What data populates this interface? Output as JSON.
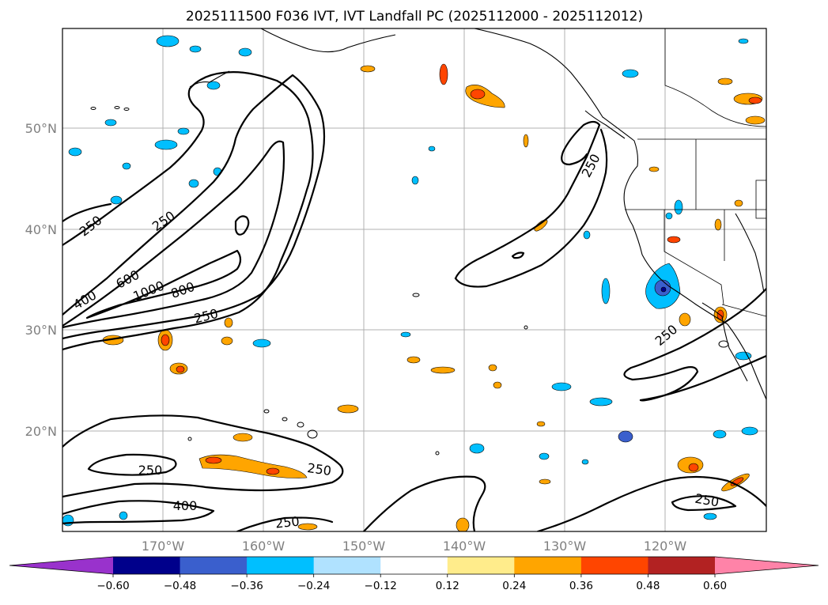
{
  "title": "2025111500 F036 IVT, IVT Landfall PC (2025112000 - 2025112012)",
  "map": {
    "lat_labels": [
      "50°N",
      "40°N",
      "30°N",
      "20°N"
    ],
    "lon_labels": [
      "170°W",
      "160°W",
      "150°W",
      "140°W",
      "130°W",
      "120°W"
    ]
  },
  "contour_labels": [
    "250",
    "250",
    "400",
    "600",
    "1000",
    "800",
    "250",
    "250",
    "250",
    "250",
    "400",
    "250",
    "250",
    "250"
  ],
  "colorbar": {
    "ticks": [
      "−0.60",
      "−0.48",
      "−0.36",
      "−0.24",
      "−0.12",
      "0.12",
      "0.24",
      "0.36",
      "0.48",
      "0.60"
    ],
    "colors": [
      "#9932cc",
      "#00008b",
      "#3a5fcd",
      "#00bfff",
      "#b0e2ff",
      "#ffffff",
      "#ffec8b",
      "#ffa500",
      "#ff4500",
      "#b22222",
      "#ff83a8"
    ]
  }
}
